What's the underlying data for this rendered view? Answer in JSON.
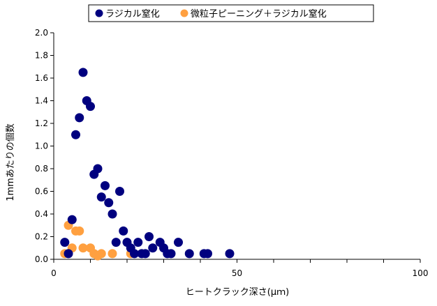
{
  "chart_data": {
    "type": "scatter",
    "xlabel": "ヒートクラック深さ(μｍ)",
    "ylabel": "1mmあたりの個数",
    "xlim": [
      0,
      100
    ],
    "ylim": [
      0,
      2.0
    ],
    "xticks": [
      0,
      50,
      100
    ],
    "yticks": [
      0.0,
      0.2,
      0.4,
      0.6,
      0.8,
      1.0,
      1.2,
      1.4,
      1.6,
      1.8,
      2.0
    ],
    "ytick_labels": [
      "0.0",
      "0.2",
      "0.4",
      "0.6",
      "0.8",
      "1.0",
      "1.2",
      "1.4",
      "1.6",
      "1.8",
      "2.0"
    ],
    "xtick_labels": [
      "0",
      "50",
      "100"
    ],
    "grid": false,
    "legend_position": "top",
    "series": [
      {
        "name": "ラジカル窒化",
        "color": "#00007f",
        "points": [
          [
            3,
            0.15
          ],
          [
            4,
            0.05
          ],
          [
            5,
            0.35
          ],
          [
            6,
            1.1
          ],
          [
            7,
            1.25
          ],
          [
            8,
            1.65
          ],
          [
            9,
            1.4
          ],
          [
            10,
            1.35
          ],
          [
            11,
            0.75
          ],
          [
            12,
            0.8
          ],
          [
            13,
            0.55
          ],
          [
            14,
            0.65
          ],
          [
            15,
            0.5
          ],
          [
            16,
            0.4
          ],
          [
            17,
            0.15
          ],
          [
            18,
            0.6
          ],
          [
            19,
            0.25
          ],
          [
            20,
            0.15
          ],
          [
            21,
            0.1
          ],
          [
            22,
            0.05
          ],
          [
            23,
            0.15
          ],
          [
            24,
            0.05
          ],
          [
            25,
            0.05
          ],
          [
            26,
            0.2
          ],
          [
            27,
            0.1
          ],
          [
            29,
            0.15
          ],
          [
            30,
            0.1
          ],
          [
            31,
            0.05
          ],
          [
            32,
            0.05
          ],
          [
            34,
            0.15
          ],
          [
            37,
            0.05
          ],
          [
            41,
            0.05
          ],
          [
            42,
            0.05
          ],
          [
            48,
            0.05
          ]
        ]
      },
      {
        "name": "微粒子ピーニング＋ラジカル窒化",
        "color": "#ffa040",
        "points": [
          [
            3,
            0.05
          ],
          [
            4,
            0.3
          ],
          [
            5,
            0.1
          ],
          [
            6,
            0.25
          ],
          [
            7,
            0.25
          ],
          [
            8,
            0.1
          ],
          [
            10,
            0.1
          ],
          [
            11,
            0.05
          ],
          [
            12,
            0.03
          ],
          [
            13,
            0.05
          ],
          [
            16,
            0.05
          ],
          [
            21,
            0.05
          ]
        ]
      }
    ]
  }
}
